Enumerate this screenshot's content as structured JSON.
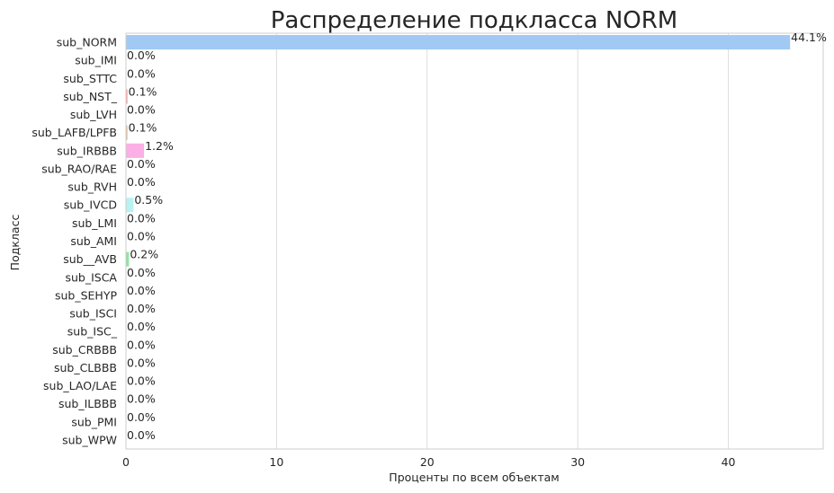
{
  "chart_data": {
    "type": "bar",
    "orientation": "horizontal",
    "title": "Распределение подкласса NORM",
    "xlabel": "Проценты по всем объектам",
    "ylabel": "Подкласс",
    "xlim": [
      0,
      46.3
    ],
    "xticks": [
      0,
      10,
      20,
      30,
      40
    ],
    "grid": true,
    "categories": [
      "sub_NORM",
      "sub_IMI",
      "sub_STTC",
      "sub_NST_",
      "sub_LVH",
      "sub_LAFB/LPFB",
      "sub_IRBBB",
      "sub_RAO/RAE",
      "sub_RVH",
      "sub_IVCD",
      "sub_LMI",
      "sub_AMI",
      "sub__AVB",
      "sub_ISCA",
      "sub_SEHYP",
      "sub_ISCI",
      "sub_ISC_",
      "sub_CRBBB",
      "sub_CLBBB",
      "sub_LAO/LAE",
      "sub_ILBBB",
      "sub_PMI",
      "sub_WPW"
    ],
    "values": [
      44.1,
      0.0,
      0.0,
      0.1,
      0.0,
      0.1,
      1.2,
      0.0,
      0.0,
      0.5,
      0.0,
      0.0,
      0.2,
      0.0,
      0.0,
      0.0,
      0.0,
      0.0,
      0.0,
      0.0,
      0.0,
      0.0,
      0.0
    ],
    "labels": [
      "44.1%",
      "0.0%",
      "0.0%",
      "0.1%",
      "0.0%",
      "0.1%",
      "1.2%",
      "0.0%",
      "0.0%",
      "0.5%",
      "0.0%",
      "0.0%",
      "0.2%",
      "0.0%",
      "0.0%",
      "0.0%",
      "0.0%",
      "0.0%",
      "0.0%",
      "0.0%",
      "0.0%",
      "0.0%",
      "0.0%"
    ],
    "colors": [
      "#a1c9f4",
      "#ffb482",
      "#8de5a1",
      "#ff9f9b",
      "#d0bbff",
      "#debb9b",
      "#fab0e4",
      "#cfcfcf",
      "#fffea3",
      "#b9f2f0",
      "#a1c9f4",
      "#ffb482",
      "#8de5a1",
      "#ff9f9b",
      "#d0bbff",
      "#debb9b",
      "#fab0e4",
      "#cfcfcf",
      "#fffea3",
      "#b9f2f0",
      "#a1c9f4",
      "#ffb482",
      "#8de5a1"
    ],
    "gridColor": "#dcdcdc",
    "spineColor": "#cccccc",
    "textColor": "#262626"
  }
}
